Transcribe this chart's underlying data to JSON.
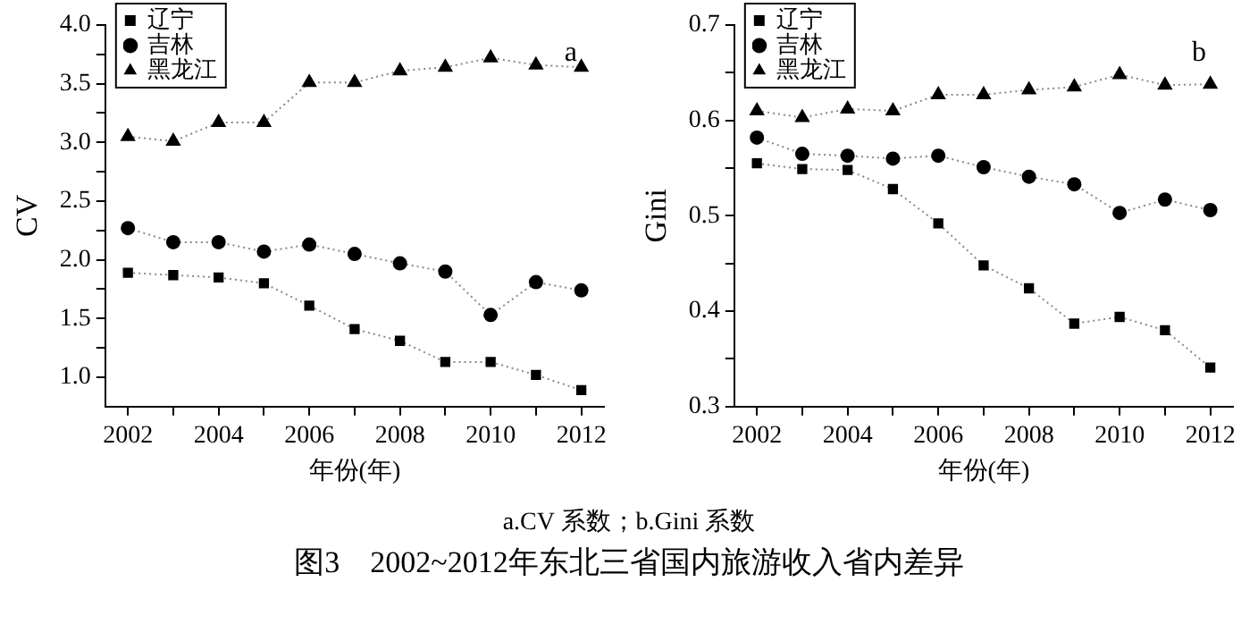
{
  "chart_data": [
    {
      "type": "line",
      "xlabel": "年份(年)",
      "ylabel": "CV",
      "legend": "top left",
      "grid": false,
      "line_style": "dotted",
      "x": [
        2002,
        2003,
        2004,
        2005,
        2006,
        2007,
        2008,
        2009,
        2010,
        2011,
        2012
      ],
      "xlim": [
        2001.5,
        2012.5
      ],
      "xticks": [
        2002,
        {
          "value": 2003,
          "label": null
        },
        2004,
        {
          "value": 2005,
          "label": null
        },
        2006,
        {
          "value": 2007,
          "label": null
        },
        2008,
        {
          "value": 2009,
          "label": null
        },
        2010,
        {
          "value": 2011,
          "label": null
        },
        2012
      ],
      "ylim": [
        0.75,
        4.0
      ],
      "yticks": [
        {
          "value": 1.0,
          "label": "1.0"
        },
        {
          "value": 1.25,
          "label": null
        },
        1.5,
        {
          "value": 1.75,
          "label": null
        },
        {
          "value": 2.0,
          "label": "2.0"
        },
        {
          "value": 2.25,
          "label": null
        },
        2.5,
        {
          "value": 2.75,
          "label": null
        },
        {
          "value": 3.0,
          "label": "3.0"
        },
        {
          "value": 3.25,
          "label": null
        },
        3.5,
        {
          "value": 3.75,
          "label": null
        },
        {
          "value": 4.0,
          "label": "4.0"
        }
      ],
      "annotations": [
        "a",
        "a.CV 系数；b.Gini 系数",
        "图3　2002~2012年东北三省国内旅游收入省内差异"
      ],
      "series": [
        {
          "name": "辽宁",
          "color": "#000000",
          "marker": "square",
          "values": [
            1.89,
            1.87,
            1.85,
            1.8,
            1.61,
            1.41,
            1.31,
            1.13,
            1.13,
            1.02,
            0.89
          ]
        },
        {
          "name": "吉林",
          "color": "#000000",
          "marker": "circle",
          "values": [
            2.27,
            2.15,
            2.15,
            2.07,
            2.13,
            2.05,
            1.97,
            1.9,
            1.53,
            1.81,
            1.74
          ]
        },
        {
          "name": "黑龙江",
          "color": "#000000",
          "marker": "triangle",
          "values": [
            3.05,
            3.01,
            3.17,
            3.17,
            3.51,
            3.51,
            3.61,
            3.64,
            3.72,
            3.66,
            3.64
          ]
        }
      ]
    },
    {
      "type": "line",
      "xlabel": "年份(年)",
      "ylabel": "Gini",
      "legend": "top left",
      "grid": false,
      "line_style": "dotted",
      "x": [
        2002,
        2003,
        2004,
        2005,
        2006,
        2007,
        2008,
        2009,
        2010,
        2011,
        2012
      ],
      "xlim": [
        2001.5,
        2012.5
      ],
      "xticks": [
        2002,
        {
          "value": 2003,
          "label": null
        },
        2004,
        {
          "value": 2005,
          "label": null
        },
        2006,
        {
          "value": 2007,
          "label": null
        },
        2008,
        {
          "value": 2009,
          "label": null
        },
        2010,
        {
          "value": 2011,
          "label": null
        },
        2012
      ],
      "ylim": [
        0.3,
        0.7
      ],
      "yticks": [
        0.3,
        {
          "value": 0.35,
          "label": null
        },
        0.4,
        {
          "value": 0.45,
          "label": null
        },
        0.5,
        {
          "value": 0.55,
          "label": null
        },
        0.6,
        {
          "value": 0.65,
          "label": null
        },
        0.7
      ],
      "annotations": [
        "b"
      ],
      "series": [
        {
          "name": "辽宁",
          "color": "#000000",
          "marker": "square",
          "values": [
            0.555,
            0.549,
            0.548,
            0.528,
            0.492,
            0.448,
            0.424,
            0.387,
            0.394,
            0.38,
            0.341
          ]
        },
        {
          "name": "吉林",
          "color": "#000000",
          "marker": "circle",
          "values": [
            0.582,
            0.565,
            0.563,
            0.56,
            0.563,
            0.551,
            0.541,
            0.533,
            0.503,
            0.517,
            0.506
          ]
        },
        {
          "name": "黑龙江",
          "color": "#000000",
          "marker": "triangle",
          "values": [
            0.61,
            0.603,
            0.612,
            0.61,
            0.627,
            0.627,
            0.632,
            0.635,
            0.648,
            0.637,
            0.638
          ]
        }
      ]
    }
  ]
}
